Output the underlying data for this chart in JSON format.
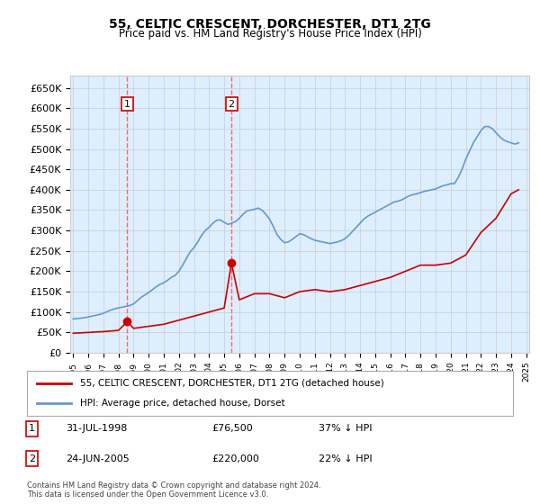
{
  "title_line1": "55, CELTIC CRESCENT, DORCHESTER, DT1 2TG",
  "title_line2": "Price paid vs. HM Land Registry's House Price Index (HPI)",
  "ylabel_ticks": [
    "£0",
    "£50K",
    "£100K",
    "£150K",
    "£200K",
    "£250K",
    "£300K",
    "£350K",
    "£400K",
    "£450K",
    "£500K",
    "£550K",
    "£600K",
    "£650K"
  ],
  "ytick_values": [
    0,
    50000,
    100000,
    150000,
    200000,
    250000,
    300000,
    350000,
    400000,
    450000,
    500000,
    550000,
    600000,
    650000
  ],
  "year_start": 1995,
  "year_end": 2025,
  "sale1_date": 1998.58,
  "sale1_price": 76500,
  "sale1_label": "1",
  "sale1_info": "31-JUL-1998    £76,500    37% ↓ HPI",
  "sale2_date": 2005.48,
  "sale2_price": 220000,
  "sale2_label": "2",
  "sale2_info": "24-JUN-2005    £220,000    22% ↓ HPI",
  "line_color_property": "#cc0000",
  "line_color_hpi": "#6699cc",
  "background_color": "#ddeeff",
  "plot_bg": "#ddeeff",
  "legend_label1": "55, CELTIC CRESCENT, DORCHESTER, DT1 2TG (detached house)",
  "legend_label2": "HPI: Average price, detached house, Dorset",
  "footer": "Contains HM Land Registry data © Crown copyright and database right 2024.\nThis data is licensed under the Open Government Licence v3.0.",
  "marker_color": "#cc0000",
  "vline_color": "#ff6666",
  "hpi_data": {
    "years": [
      1995.0,
      1995.25,
      1995.5,
      1995.75,
      1996.0,
      1996.25,
      1996.5,
      1996.75,
      1997.0,
      1997.25,
      1997.5,
      1997.75,
      1998.0,
      1998.25,
      1998.5,
      1998.75,
      1999.0,
      1999.25,
      1999.5,
      1999.75,
      2000.0,
      2000.25,
      2000.5,
      2000.75,
      2001.0,
      2001.25,
      2001.5,
      2001.75,
      2002.0,
      2002.25,
      2002.5,
      2002.75,
      2003.0,
      2003.25,
      2003.5,
      2003.75,
      2004.0,
      2004.25,
      2004.5,
      2004.75,
      2005.0,
      2005.25,
      2005.5,
      2005.75,
      2006.0,
      2006.25,
      2006.5,
      2006.75,
      2007.0,
      2007.25,
      2007.5,
      2007.75,
      2008.0,
      2008.25,
      2008.5,
      2008.75,
      2009.0,
      2009.25,
      2009.5,
      2009.75,
      2010.0,
      2010.25,
      2010.5,
      2010.75,
      2011.0,
      2011.25,
      2011.5,
      2011.75,
      2012.0,
      2012.25,
      2012.5,
      2012.75,
      2013.0,
      2013.25,
      2013.5,
      2013.75,
      2014.0,
      2014.25,
      2014.5,
      2014.75,
      2015.0,
      2015.25,
      2015.5,
      2015.75,
      2016.0,
      2016.25,
      2016.5,
      2016.75,
      2017.0,
      2017.25,
      2017.5,
      2017.75,
      2018.0,
      2018.25,
      2018.5,
      2018.75,
      2019.0,
      2019.25,
      2019.5,
      2019.75,
      2020.0,
      2020.25,
      2020.5,
      2020.75,
      2021.0,
      2021.25,
      2021.5,
      2021.75,
      2022.0,
      2022.25,
      2022.5,
      2022.75,
      2023.0,
      2023.25,
      2023.5,
      2023.75,
      2024.0,
      2024.25,
      2024.5
    ],
    "values": [
      83000,
      84000,
      85000,
      86000,
      88000,
      90000,
      92000,
      94000,
      97000,
      101000,
      105000,
      108000,
      110000,
      112000,
      114000,
      116000,
      120000,
      128000,
      136000,
      142000,
      148000,
      155000,
      162000,
      168000,
      172000,
      178000,
      185000,
      190000,
      200000,
      215000,
      232000,
      248000,
      258000,
      272000,
      288000,
      300000,
      308000,
      318000,
      325000,
      326000,
      320000,
      315000,
      318000,
      322000,
      330000,
      340000,
      348000,
      350000,
      352000,
      355000,
      350000,
      340000,
      328000,
      310000,
      290000,
      278000,
      270000,
      272000,
      278000,
      285000,
      292000,
      290000,
      285000,
      280000,
      276000,
      274000,
      272000,
      270000,
      268000,
      270000,
      272000,
      275000,
      280000,
      288000,
      298000,
      308000,
      318000,
      328000,
      335000,
      340000,
      345000,
      350000,
      355000,
      360000,
      365000,
      370000,
      372000,
      375000,
      380000,
      385000,
      388000,
      390000,
      393000,
      396000,
      398000,
      400000,
      402000,
      406000,
      410000,
      412000,
      415000,
      415000,
      430000,
      450000,
      475000,
      495000,
      515000,
      530000,
      545000,
      555000,
      555000,
      550000,
      540000,
      530000,
      522000,
      518000,
      515000,
      512000,
      515000
    ]
  },
  "property_data": {
    "years": [
      1995.0,
      1996.0,
      1997.0,
      1998.0,
      1998.58,
      1999.0,
      2000.0,
      2001.0,
      2002.0,
      2003.0,
      2004.0,
      2005.0,
      2005.48,
      2006.0,
      2007.0,
      2008.0,
      2009.0,
      2010.0,
      2011.0,
      2012.0,
      2013.0,
      2014.0,
      2015.0,
      2016.0,
      2017.0,
      2018.0,
      2019.0,
      2020.0,
      2021.0,
      2022.0,
      2023.0,
      2024.0,
      2024.5
    ],
    "values": [
      48000,
      50000,
      52000,
      55000,
      76500,
      60000,
      65000,
      70000,
      80000,
      90000,
      100000,
      110000,
      220000,
      130000,
      145000,
      145000,
      135000,
      150000,
      155000,
      150000,
      155000,
      165000,
      175000,
      185000,
      200000,
      215000,
      215000,
      220000,
      240000,
      295000,
      330000,
      390000,
      400000
    ]
  }
}
